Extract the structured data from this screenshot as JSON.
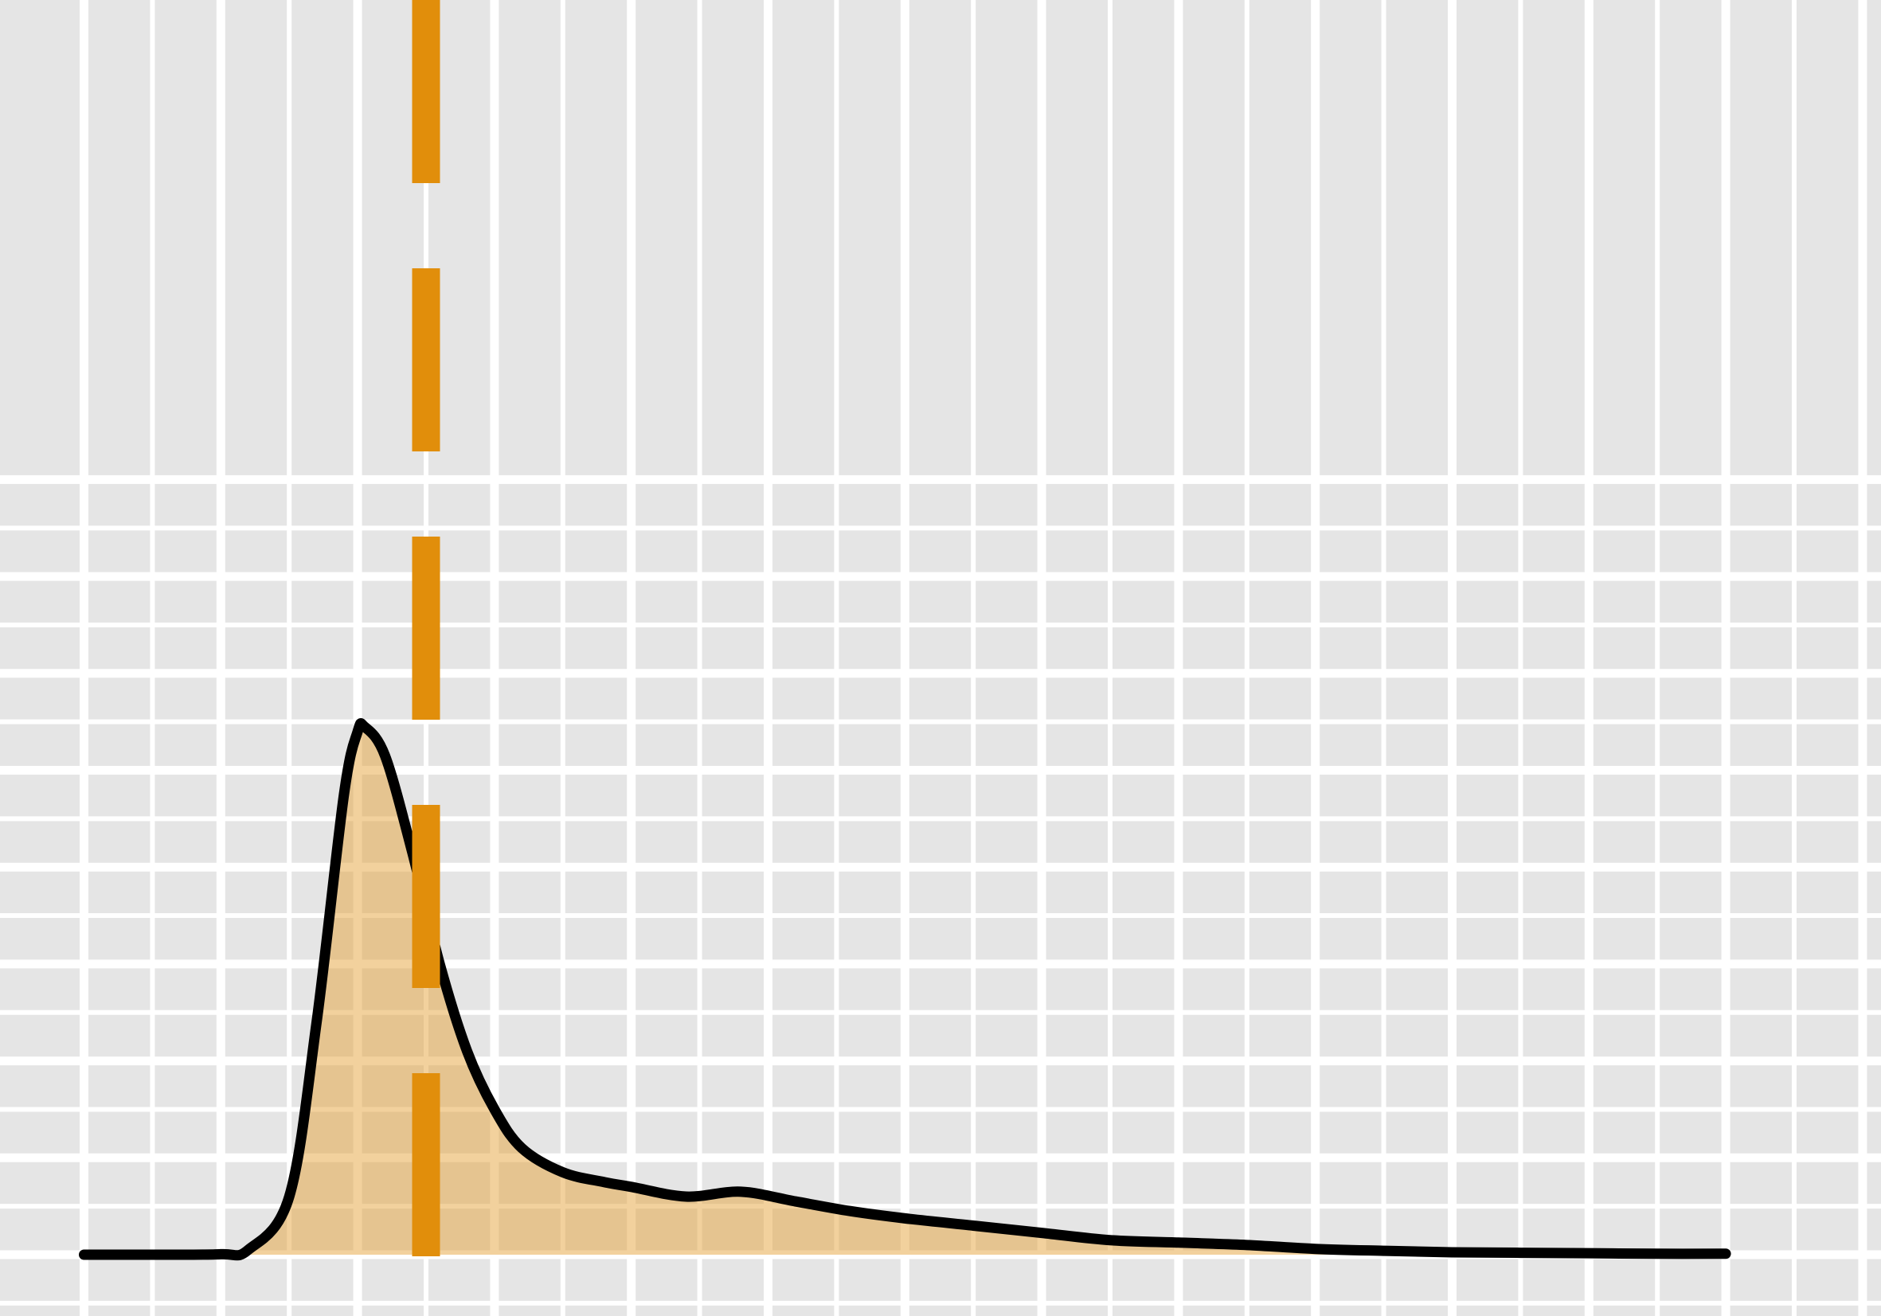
{
  "chart_data": {
    "type": "area",
    "title": "",
    "xlabel": "",
    "ylabel": "",
    "grid": true,
    "xlim": [
      0,
      12.5
    ],
    "ylim": [
      0,
      1.1
    ],
    "x": [
      0,
      0.5,
      1.0,
      1.2,
      1.5,
      1.7,
      1.9,
      2.0,
      2.05,
      2.2,
      2.4,
      2.6,
      2.8,
      3.0,
      3.2,
      3.5,
      3.8,
      4.0,
      4.4,
      4.8,
      5.2,
      5.6,
      6.0,
      6.5,
      7.0,
      7.5,
      8.0,
      8.5,
      9.0,
      9.5,
      10.0,
      10.5,
      11.0,
      11.5,
      12.0
    ],
    "series": [
      {
        "values": [
          0,
          0,
          0.001,
          0.01,
          0.12,
          0.48,
          0.95,
          1.08,
          1.09,
          1.03,
          0.83,
          0.6,
          0.42,
          0.3,
          0.22,
          0.17,
          0.15,
          0.14,
          0.12,
          0.13,
          0.11,
          0.09,
          0.075,
          0.06,
          0.045,
          0.03,
          0.025,
          0.02,
          0.012,
          0.008,
          0.005,
          0.004,
          0.003,
          0.002,
          0.002
        ]
      }
    ],
    "vline": {
      "x": 2.5
    },
    "colors": {
      "fill": "#e6a43c",
      "fill_opacity": 0.5,
      "line": "#000000",
      "vline": "#e18e0b",
      "panel": "#e5e5e5",
      "grid": "#ffffff"
    }
  }
}
